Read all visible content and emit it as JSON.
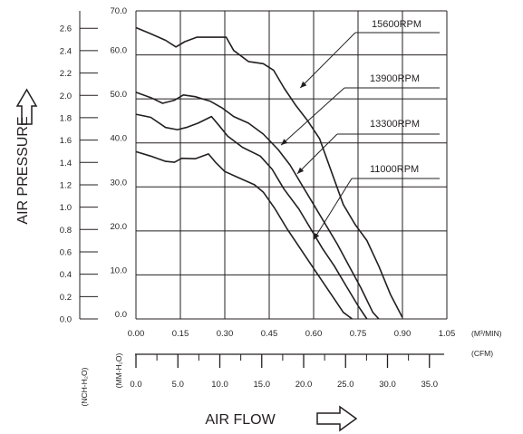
{
  "chart_data": {
    "type": "line",
    "xlabel": "AIR FLOW",
    "ylabel": "AIR PRESSURE",
    "x_unit_primary": "(M³/MIN)",
    "x_unit_secondary": "(CFM)",
    "y_unit_inch": "(NCH-H₂O)",
    "y_unit_mm": "(MM-H₂O)",
    "xlim": [
      0,
      1.05
    ],
    "ylim": [
      0,
      70
    ],
    "grid": true,
    "x_ticks": [
      "0.00",
      "0.15",
      "0.30",
      "0.45",
      "0.60",
      "0.75",
      "0.90",
      "1.05"
    ],
    "y_ticks_mm": [
      "0.0",
      "10.0",
      "20.0",
      "30.0",
      "40.0",
      "50.0",
      "60.0",
      "70.0"
    ],
    "y_ticks_inch": [
      "0.0",
      "0.2",
      "0.4",
      "0.6",
      "0.8",
      "1.0",
      "1.2",
      "1.4",
      "1.6",
      "1.8",
      "2.0",
      "2.2",
      "2.4",
      "2.6"
    ],
    "cfm_ticks": [
      "0.0",
      "5.0",
      "10.0",
      "15.0",
      "20.0",
      "25.0",
      "30.0",
      "35.0"
    ],
    "series": [
      {
        "name": "15600RPM",
        "points": [
          [
            0.0,
            66.2
          ],
          [
            0.05,
            64.8
          ],
          [
            0.1,
            63.3
          ],
          [
            0.135,
            61.8
          ],
          [
            0.165,
            63.0
          ],
          [
            0.205,
            64.0
          ],
          [
            0.25,
            64.0
          ],
          [
            0.305,
            64.0
          ],
          [
            0.33,
            61.0
          ],
          [
            0.38,
            58.5
          ],
          [
            0.43,
            58.0
          ],
          [
            0.465,
            56.5
          ],
          [
            0.5,
            52.5
          ],
          [
            0.54,
            48.5
          ],
          [
            0.58,
            45.0
          ],
          [
            0.62,
            41.0
          ],
          [
            0.66,
            33.5
          ],
          [
            0.7,
            26.0
          ],
          [
            0.74,
            21.5
          ],
          [
            0.78,
            17.8
          ],
          [
            0.82,
            12.0
          ],
          [
            0.86,
            5.5
          ],
          [
            0.9,
            0.3
          ]
        ]
      },
      {
        "name": "13900RPM",
        "points": [
          [
            0.0,
            51.5
          ],
          [
            0.05,
            50.3
          ],
          [
            0.09,
            49.0
          ],
          [
            0.13,
            49.7
          ],
          [
            0.16,
            50.9
          ],
          [
            0.2,
            50.5
          ],
          [
            0.25,
            49.5
          ],
          [
            0.29,
            48.0
          ],
          [
            0.33,
            46.0
          ],
          [
            0.38,
            44.5
          ],
          [
            0.43,
            42.0
          ],
          [
            0.48,
            38.5
          ],
          [
            0.52,
            35.0
          ],
          [
            0.56,
            30.5
          ],
          [
            0.6,
            26.0
          ],
          [
            0.64,
            21.5
          ],
          [
            0.68,
            17.0
          ],
          [
            0.72,
            12.0
          ],
          [
            0.76,
            7.0
          ],
          [
            0.8,
            1.5
          ],
          [
            0.82,
            0.0
          ]
        ]
      },
      {
        "name": "13300RPM",
        "points": [
          [
            0.0,
            46.5
          ],
          [
            0.05,
            45.8
          ],
          [
            0.1,
            43.5
          ],
          [
            0.14,
            43.0
          ],
          [
            0.17,
            43.5
          ],
          [
            0.21,
            44.5
          ],
          [
            0.255,
            46.0
          ],
          [
            0.28,
            44.0
          ],
          [
            0.31,
            41.5
          ],
          [
            0.36,
            39.0
          ],
          [
            0.42,
            37.0
          ],
          [
            0.46,
            34.0
          ],
          [
            0.5,
            29.5
          ],
          [
            0.55,
            25.0
          ],
          [
            0.59,
            20.5
          ],
          [
            0.63,
            16.0
          ],
          [
            0.67,
            12.0
          ],
          [
            0.71,
            7.5
          ],
          [
            0.75,
            3.0
          ],
          [
            0.78,
            0.0
          ]
        ]
      },
      {
        "name": "11000RPM",
        "points": [
          [
            0.0,
            38.0
          ],
          [
            0.05,
            37.0
          ],
          [
            0.1,
            35.8
          ],
          [
            0.13,
            35.6
          ],
          [
            0.155,
            36.5
          ],
          [
            0.2,
            36.4
          ],
          [
            0.245,
            37.5
          ],
          [
            0.27,
            35.5
          ],
          [
            0.3,
            33.5
          ],
          [
            0.35,
            32.0
          ],
          [
            0.4,
            30.5
          ],
          [
            0.43,
            28.8
          ],
          [
            0.47,
            25.0
          ],
          [
            0.51,
            20.5
          ],
          [
            0.55,
            16.5
          ],
          [
            0.59,
            12.5
          ],
          [
            0.63,
            8.5
          ],
          [
            0.67,
            4.5
          ],
          [
            0.7,
            1.5
          ],
          [
            0.73,
            0.0
          ]
        ]
      }
    ],
    "line_color": "#231f20"
  }
}
